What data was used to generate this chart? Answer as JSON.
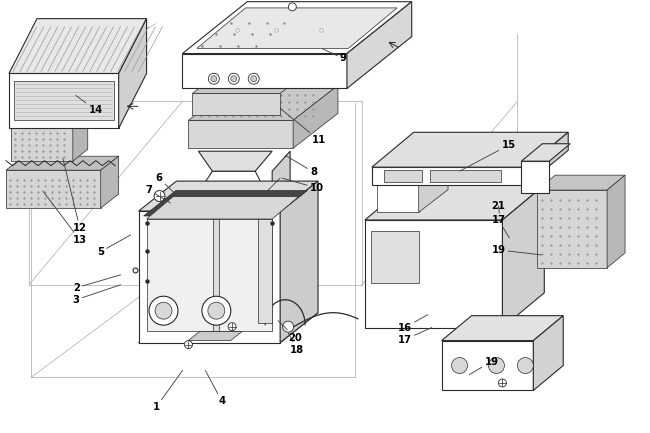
{
  "bg_color": "#ffffff",
  "line_color": "#2a2a2a",
  "label_color": "#000000",
  "fig_width": 6.5,
  "fig_height": 4.33,
  "dpi": 100,
  "lw": 0.8,
  "labels": [
    [
      "1",
      1.55,
      0.22
    ],
    [
      "2",
      0.72,
      1.42
    ],
    [
      "3",
      0.72,
      1.3
    ],
    [
      "4",
      2.18,
      0.28
    ],
    [
      "5",
      0.98,
      1.78
    ],
    [
      "6",
      1.55,
      2.5
    ],
    [
      "7",
      1.45,
      2.38
    ],
    [
      "8",
      3.1,
      2.58
    ],
    [
      "9",
      3.38,
      3.72
    ],
    [
      "10",
      3.1,
      2.42
    ],
    [
      "11",
      3.12,
      2.88
    ],
    [
      "12",
      0.72,
      2.02
    ],
    [
      "13",
      0.72,
      1.9
    ],
    [
      "14",
      0.85,
      3.18
    ],
    [
      "15",
      5.02,
      2.82
    ],
    [
      "16",
      3.98,
      1.02
    ],
    [
      "17",
      3.98,
      0.9
    ],
    [
      "17",
      4.92,
      2.08
    ],
    [
      "18",
      2.92,
      0.8
    ],
    [
      "19",
      4.92,
      1.78
    ],
    [
      "19",
      4.85,
      0.68
    ],
    [
      "20",
      2.92,
      0.92
    ],
    [
      "21",
      4.92,
      2.22
    ]
  ]
}
